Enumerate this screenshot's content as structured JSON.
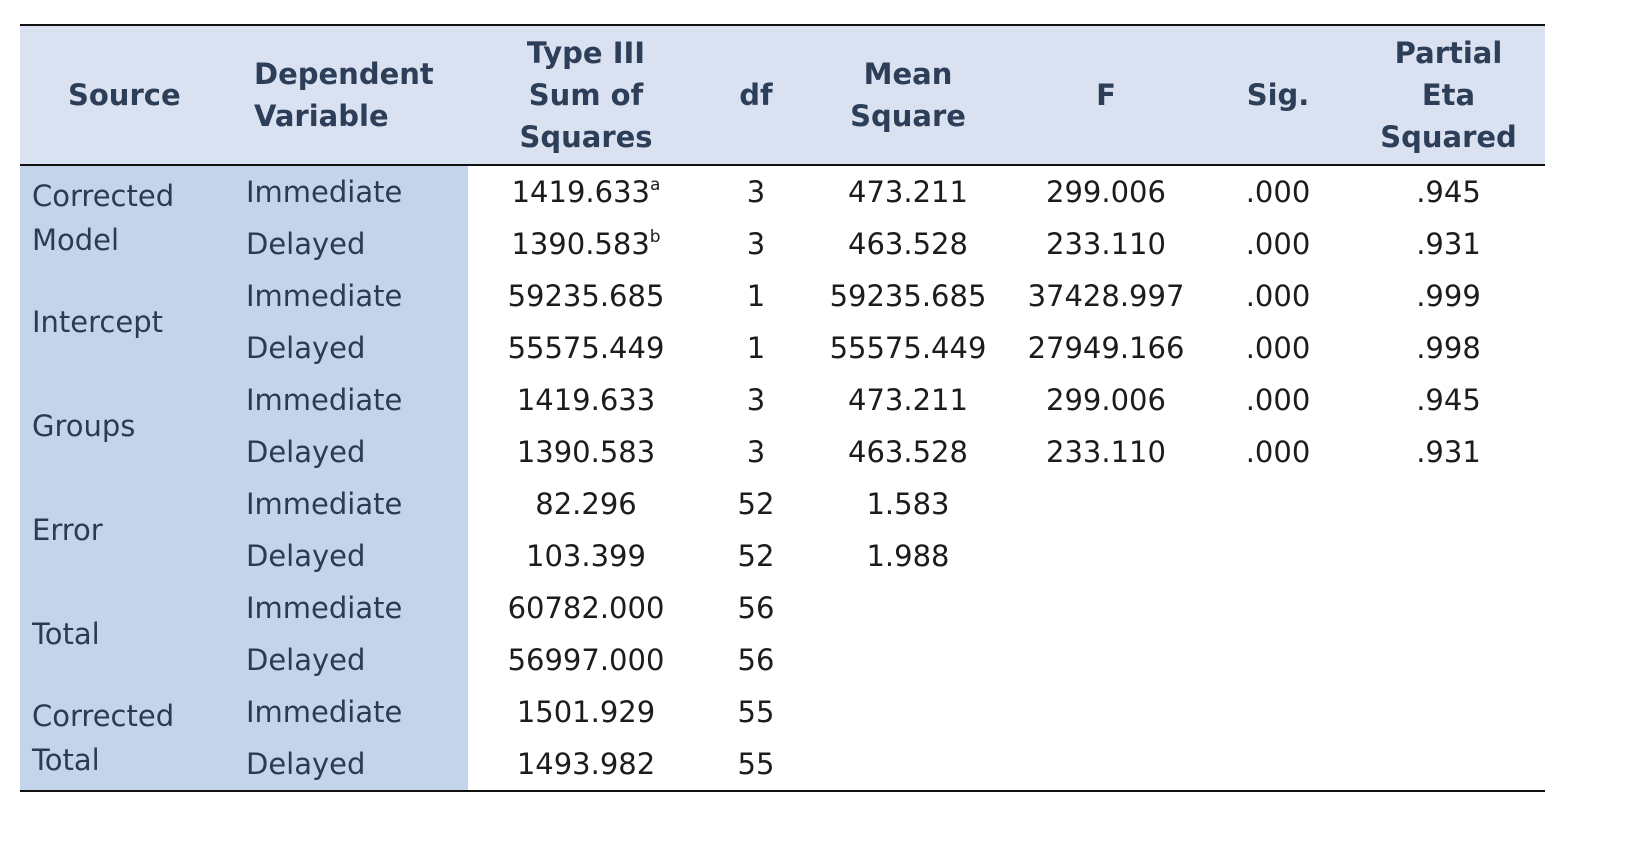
{
  "headers": {
    "source": "Source",
    "dependent_variable": [
      "Dependent",
      "Variable"
    ],
    "ss": [
      "Type III",
      "Sum of",
      "Squares"
    ],
    "df": "df",
    "mean_square": [
      "Mean",
      "Square"
    ],
    "f": "F",
    "sig": "Sig.",
    "partial_eta": [
      "Partial",
      "Eta",
      "Squared"
    ]
  },
  "groups": [
    {
      "source": [
        "Corrected",
        "Model"
      ],
      "rows": [
        {
          "dv": "Immediate",
          "ss": "1419.633",
          "ss_note": "a",
          "df": "3",
          "ms": "473.211",
          "f": "299.006",
          "sig": ".000",
          "eta": ".945"
        },
        {
          "dv": "Delayed",
          "ss": "1390.583",
          "ss_note": "b",
          "df": "3",
          "ms": "463.528",
          "f": "233.110",
          "sig": ".000",
          "eta": ".931"
        }
      ]
    },
    {
      "source": [
        "Intercept"
      ],
      "rows": [
        {
          "dv": "Immediate",
          "ss": "59235.685",
          "df": "1",
          "ms": "59235.685",
          "f": "37428.997",
          "sig": ".000",
          "eta": ".999"
        },
        {
          "dv": "Delayed",
          "ss": "55575.449",
          "df": "1",
          "ms": "55575.449",
          "f": "27949.166",
          "sig": ".000",
          "eta": ".998"
        }
      ]
    },
    {
      "source": [
        "Groups"
      ],
      "rows": [
        {
          "dv": "Immediate",
          "ss": "1419.633",
          "df": "3",
          "ms": "473.211",
          "f": "299.006",
          "sig": ".000",
          "eta": ".945"
        },
        {
          "dv": "Delayed",
          "ss": "1390.583",
          "df": "3",
          "ms": "463.528",
          "f": "233.110",
          "sig": ".000",
          "eta": ".931"
        }
      ]
    },
    {
      "source": [
        "Error"
      ],
      "rows": [
        {
          "dv": "Immediate",
          "ss": "82.296",
          "df": "52",
          "ms": "1.583",
          "f": "",
          "sig": "",
          "eta": ""
        },
        {
          "dv": "Delayed",
          "ss": "103.399",
          "df": "52",
          "ms": "1.988",
          "f": "",
          "sig": "",
          "eta": ""
        }
      ]
    },
    {
      "source": [
        "Total"
      ],
      "rows": [
        {
          "dv": "Immediate",
          "ss": "60782.000",
          "df": "56",
          "ms": "",
          "f": "",
          "sig": "",
          "eta": ""
        },
        {
          "dv": "Delayed",
          "ss": "56997.000",
          "df": "56",
          "ms": "",
          "f": "",
          "sig": "",
          "eta": ""
        }
      ]
    },
    {
      "source": [
        "Corrected",
        "Total"
      ],
      "rows": [
        {
          "dv": "Immediate",
          "ss": "1501.929",
          "df": "55",
          "ms": "",
          "f": "",
          "sig": "",
          "eta": ""
        },
        {
          "dv": "Delayed",
          "ss": "1493.982",
          "df": "55",
          "ms": "",
          "f": "",
          "sig": "",
          "eta": ""
        }
      ]
    }
  ]
}
